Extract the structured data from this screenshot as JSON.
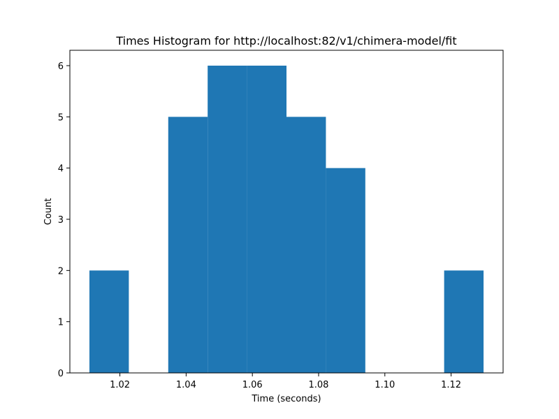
{
  "chart_data": {
    "type": "bar",
    "title": "Times Histogram for http://localhost:82/v1/chimera-model/fit",
    "xlabel": "Time (seconds)",
    "ylabel": "Count",
    "bin_edges": [
      1.0108,
      1.0227,
      1.0346,
      1.0465,
      1.0584,
      1.0703,
      1.0822,
      1.0941,
      1.106,
      1.1179,
      1.1298
    ],
    "values": [
      2,
      0,
      5,
      6,
      6,
      5,
      4,
      0,
      0,
      2
    ],
    "xlim": [
      1.0049,
      1.1357
    ],
    "ylim": [
      0,
      6.3
    ],
    "x_ticks": [
      1.02,
      1.04,
      1.06,
      1.08,
      1.1,
      1.12
    ],
    "x_tick_labels": [
      "1.02",
      "1.04",
      "1.06",
      "1.08",
      "1.10",
      "1.12"
    ],
    "y_ticks": [
      0,
      1,
      2,
      3,
      4,
      5,
      6
    ],
    "y_tick_labels": [
      "0",
      "1",
      "2",
      "3",
      "4",
      "5",
      "6"
    ],
    "bar_color": "#1f77b4",
    "grid": false
  }
}
